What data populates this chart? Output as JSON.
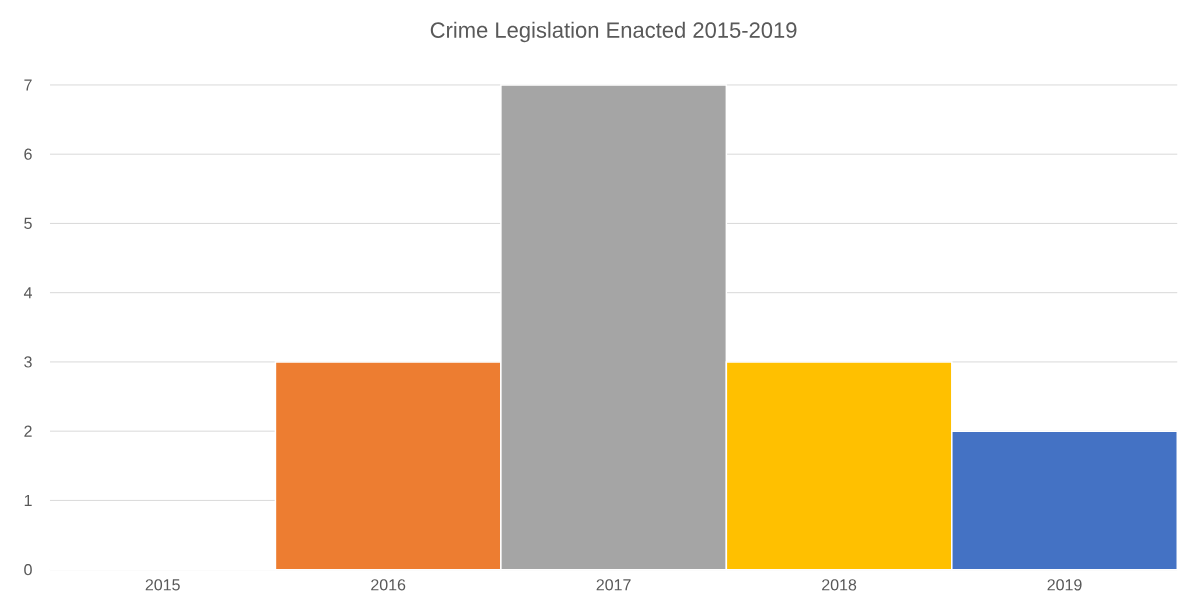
{
  "chart_data": {
    "type": "bar",
    "title": "Crime Legislation Enacted 2015-2019",
    "categories": [
      "2015",
      "2016",
      "2017",
      "2018",
      "2019"
    ],
    "values": [
      0,
      3,
      7,
      3,
      2
    ],
    "colors": [
      "#4472c4",
      "#ed7d31",
      "#a5a5a5",
      "#ffc000",
      "#4472c4"
    ],
    "ylim": [
      0,
      7
    ],
    "yticks": [
      0,
      1,
      2,
      3,
      4,
      5,
      6,
      7
    ],
    "grid": "y"
  }
}
